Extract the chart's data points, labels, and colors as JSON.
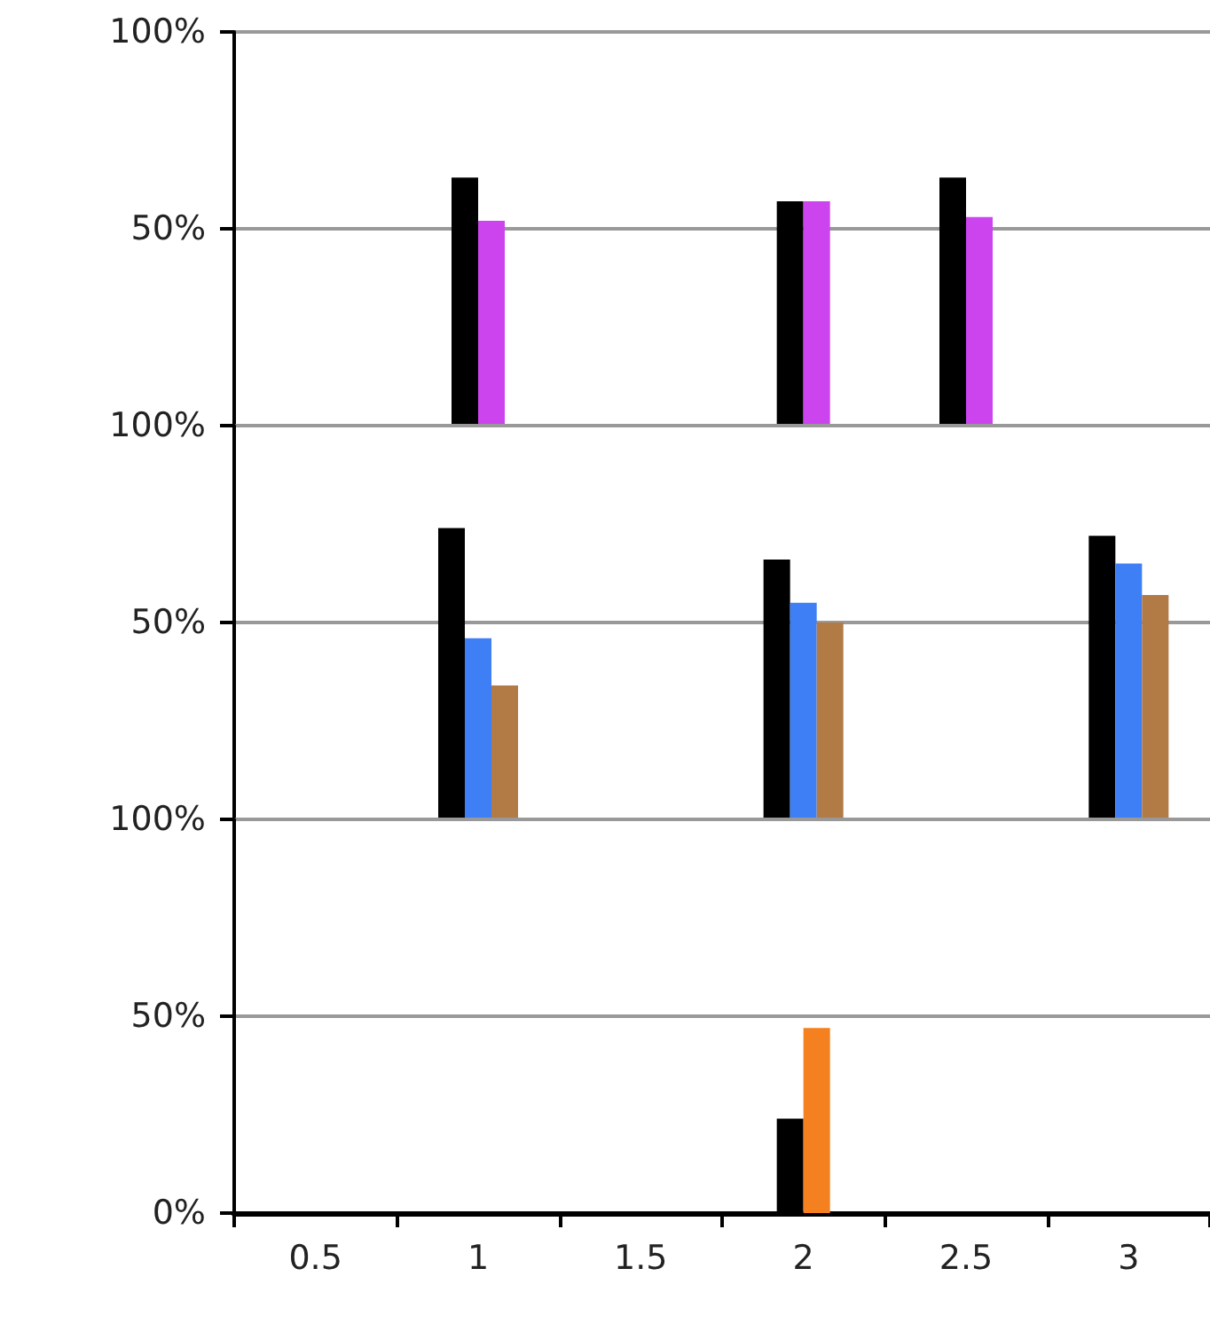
{
  "chart_data": [
    {
      "type": "bar",
      "categories": [
        "0.5",
        "1",
        "1.5",
        "2",
        "2.5",
        "3"
      ],
      "ylim": [
        0,
        100
      ],
      "yticks": [
        {
          "value": 0,
          "label": null
        },
        {
          "value": 50,
          "label": "50%"
        },
        {
          "value": 100,
          "label": "100%"
        }
      ],
      "grid": "y",
      "tick_labels": "y",
      "series": [
        {
          "color": "#000000",
          "values": [
            null,
            63,
            null,
            57,
            63,
            null
          ]
        },
        {
          "color": "#cc44ee",
          "values": [
            null,
            52,
            null,
            57,
            53,
            null
          ]
        }
      ]
    },
    {
      "type": "bar",
      "categories": [
        "0.5",
        "1",
        "1.5",
        "2",
        "2.5",
        "3"
      ],
      "ylim": [
        0,
        100
      ],
      "yticks": [
        {
          "value": 0,
          "label": null
        },
        {
          "value": 50,
          "label": "50%"
        },
        {
          "value": 100,
          "label": "100%"
        }
      ],
      "grid": "y",
      "tick_labels": "y",
      "series": [
        {
          "color": "#000000",
          "values": [
            null,
            74,
            null,
            66,
            null,
            72
          ]
        },
        {
          "color": "#3f7ff5",
          "values": [
            null,
            46,
            null,
            55,
            null,
            65
          ]
        },
        {
          "color": "#b27a45",
          "values": [
            null,
            34,
            null,
            50,
            null,
            57
          ]
        }
      ]
    },
    {
      "type": "bar",
      "categories": [
        "0.5",
        "1",
        "1.5",
        "2",
        "2.5",
        "3"
      ],
      "ylim": [
        0,
        100
      ],
      "yticks": [
        {
          "value": 0,
          "label": "0%"
        },
        {
          "value": 50,
          "label": "50%"
        },
        {
          "value": 100,
          "label": "100%"
        }
      ],
      "grid": "y",
      "series": [
        {
          "color": "#000000",
          "values": [
            null,
            null,
            null,
            24,
            null,
            null
          ]
        },
        {
          "color": "#f5801f",
          "values": [
            null,
            null,
            null,
            47,
            null,
            null
          ]
        }
      ]
    }
  ]
}
